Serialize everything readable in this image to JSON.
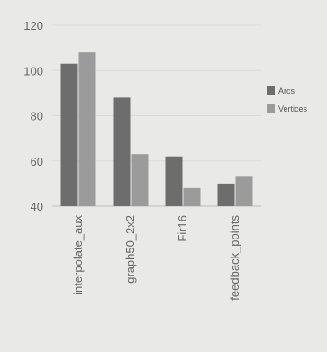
{
  "chart_data": {
    "type": "bar",
    "title": "",
    "xlabel": "",
    "ylabel": "",
    "categories": [
      "interpolate_aux",
      "graph50_2x2",
      "Fir16",
      "feedback_points"
    ],
    "series": [
      {
        "name": "Arcs",
        "values": [
          103,
          88,
          62,
          50
        ],
        "color": "#6d6d6d"
      },
      {
        "name": "Vertices",
        "values": [
          108,
          63,
          48,
          53
        ],
        "color": "#9b9b9b"
      }
    ],
    "ylim": [
      40,
      120
    ],
    "yticks": [
      40,
      60,
      80,
      100,
      120
    ],
    "grid": true,
    "legend_position": "right"
  }
}
